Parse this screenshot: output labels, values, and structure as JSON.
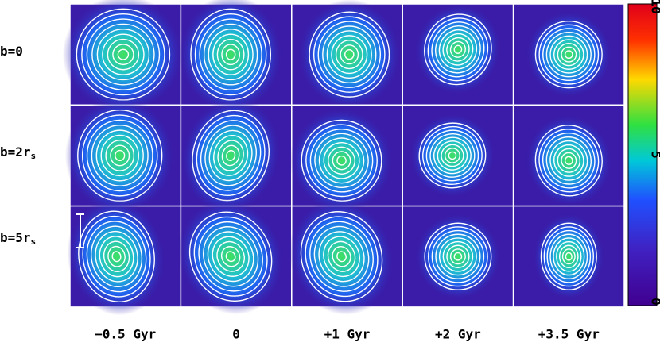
{
  "rows": [
    {
      "label": "b=0"
    },
    {
      "label": "b=2r",
      "sub": "s"
    },
    {
      "label": "b=5r",
      "sub": "s"
    }
  ],
  "columns": [
    "−0.5 Gyr",
    "0",
    "+1 Gyr",
    "+2 Gyr",
    "+3.5 Gyr"
  ],
  "colorbar": {
    "labels": [
      "10",
      "5",
      "0"
    ]
  }
}
